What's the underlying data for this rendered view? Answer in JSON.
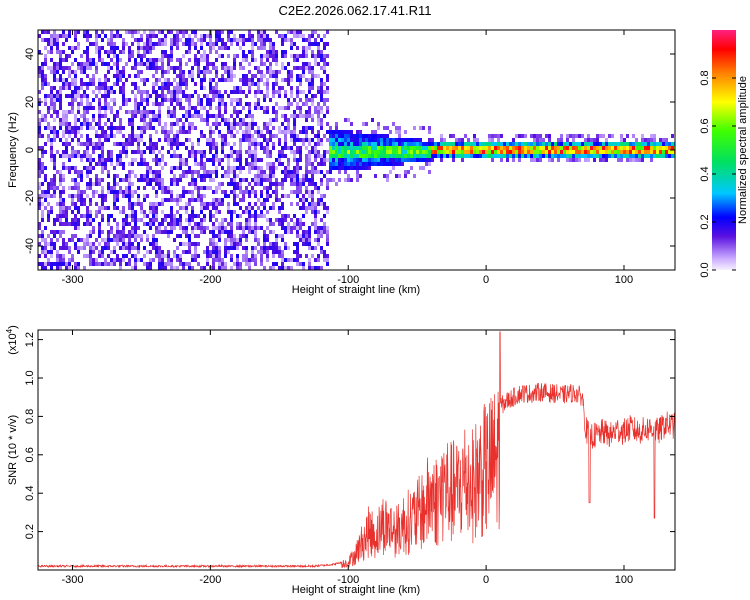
{
  "title": "C2E2.2026.062.17.41.R11",
  "chart_data": [
    {
      "type": "heatmap",
      "xlabel": "Height of straight line (km)",
      "ylabel": "Frequency (Hz)",
      "xlim": [
        -325,
        137
      ],
      "ylim": [
        -50,
        50
      ],
      "x_ticks": [
        -300,
        -200,
        -100,
        0,
        100
      ],
      "y_ticks": [
        -40,
        -20,
        0,
        20,
        40
      ],
      "colorbar": {
        "label": "Normalized spectral amplitude",
        "range": [
          0,
          1
        ],
        "ticks": [
          0.0,
          0.2,
          0.4,
          0.6,
          0.8
        ]
      },
      "description_regions": [
        {
          "x_range": [
            -325,
            -115
          ],
          "freq_range": [
            -50,
            50
          ],
          "amplitude": "low, 0.05-0.25"
        },
        {
          "x_range": [
            -115,
            -40
          ],
          "freq_range": [
            -8,
            8
          ],
          "amplitude": "0.3-0.6, centered near 0 Hz"
        },
        {
          "x_range": [
            -40,
            137
          ],
          "freq_range": [
            -2,
            4
          ],
          "amplitude": "0.6-0.95, narrow band near 1-2 Hz"
        }
      ]
    },
    {
      "type": "line",
      "xlabel": "Height of straight line (km)",
      "ylabel": "SNR (10 * v/v)",
      "y_multiplier": "(x10",
      "y_multiplier_exp": "4",
      "y_multiplier_close": ")",
      "xlim": [
        -325,
        137
      ],
      "ylim": [
        0,
        1.25
      ],
      "x_ticks": [
        -300,
        -200,
        -100,
        0,
        100
      ],
      "y_ticks": [
        0.2,
        0.4,
        0.6,
        0.8,
        1.0,
        1.2
      ],
      "series": [
        {
          "name": "SNR",
          "color": "#e8312c",
          "x": [
            -325,
            -300,
            -250,
            -200,
            -150,
            -125,
            -110,
            -100,
            -95,
            -90,
            -85,
            -80,
            -75,
            -70,
            -65,
            -60,
            -55,
            -50,
            -45,
            -40,
            -35,
            -30,
            -25,
            -20,
            -15,
            -10,
            -5,
            0,
            5,
            8,
            10,
            15,
            20,
            25,
            30,
            35,
            40,
            45,
            50,
            55,
            60,
            65,
            70,
            72,
            75,
            80,
            85,
            90,
            95,
            100,
            105,
            110,
            115,
            120,
            125,
            130,
            137
          ],
          "y": [
            0.02,
            0.02,
            0.02,
            0.02,
            0.02,
            0.02,
            0.03,
            0.05,
            0.1,
            0.18,
            0.25,
            0.22,
            0.3,
            0.28,
            0.25,
            0.3,
            0.32,
            0.35,
            0.4,
            0.48,
            0.45,
            0.55,
            0.5,
            0.52,
            0.6,
            0.55,
            0.62,
            0.65,
            0.7,
            0.72,
            0.85,
            0.88,
            0.9,
            0.92,
            0.92,
            0.92,
            0.93,
            0.92,
            0.92,
            0.91,
            0.92,
            0.92,
            0.9,
            0.74,
            0.7,
            0.7,
            0.72,
            0.7,
            0.73,
            0.72,
            0.74,
            0.72,
            0.73,
            0.74,
            0.72,
            0.76,
            0.75
          ]
        }
      ],
      "annotations": [
        {
          "x": 10,
          "y": 1.24,
          "text_hidden": true
        },
        {
          "x": 122,
          "y": 0.27,
          "text_hidden": true
        }
      ]
    }
  ]
}
